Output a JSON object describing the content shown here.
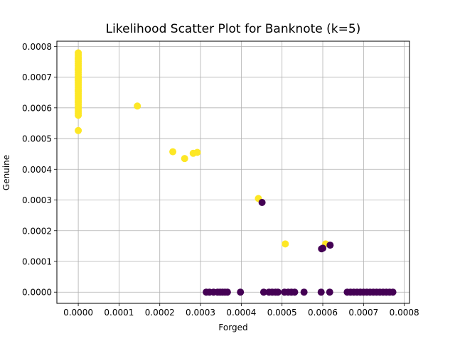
{
  "chart_data": {
    "type": "scatter",
    "title": "Likelihood Scatter Plot for Banknote (k=5)",
    "xlabel": "Forged",
    "ylabel": "Genuine",
    "xlim": [
      -5.25e-05,
      0.0008128
    ],
    "ylim": [
      -3.65e-05,
      0.000817
    ],
    "x_ticks": [
      "0.0000",
      "0.0001",
      "0.0002",
      "0.0003",
      "0.0004",
      "0.0005",
      "0.0006",
      "0.0007",
      "0.0008"
    ],
    "x_tick_values": [
      0,
      0.0001,
      0.0002,
      0.0003,
      0.0004,
      0.0005,
      0.0006,
      0.0007,
      0.0008
    ],
    "y_ticks": [
      "0.0000",
      "0.0001",
      "0.0002",
      "0.0003",
      "0.0004",
      "0.0005",
      "0.0006",
      "0.0007",
      "0.0008"
    ],
    "y_tick_values": [
      0,
      0.0001,
      0.0002,
      0.0003,
      0.0004,
      0.0005,
      0.0006,
      0.0007,
      0.0008
    ],
    "grid": true,
    "legend": "none",
    "colors": {
      "genuine_class": "#fde725",
      "forged_class": "#440154"
    },
    "series": [
      {
        "color": "#fde725",
        "x": [
          0,
          0,
          0,
          0,
          0,
          0,
          0,
          0,
          0,
          0,
          0,
          0,
          0,
          0,
          0,
          0,
          0,
          0,
          0,
          0,
          0,
          0,
          0,
          0,
          0,
          0,
          0,
          0,
          0,
          0,
          0,
          0,
          0,
          0,
          0,
          0,
          0.000145,
          0.000232,
          0.000261,
          0.000282,
          0.000292,
          0.000442,
          0.000508,
          0.000607
        ],
        "y": [
          0.000779,
          0.000772,
          0.000765,
          0.000758,
          0.000751,
          0.000744,
          0.000737,
          0.00073,
          0.000723,
          0.000716,
          0.000709,
          0.000702,
          0.000695,
          0.000688,
          0.000681,
          0.000674,
          0.000667,
          0.00066,
          0.000653,
          0.000646,
          0.000639,
          0.000632,
          0.000625,
          0.000618,
          0.000611,
          0.000604,
          0.000597,
          0.00059,
          0.000583,
          0.000576,
          0.00062,
          0.000655,
          0.00069,
          0.000725,
          0.00076,
          0.000526,
          0.000606,
          0.000457,
          0.000435,
          0.000452,
          0.000455,
          0.000305,
          0.000157,
          0.000157
        ]
      },
      {
        "color": "#440154",
        "x": [
          0.000451,
          0.000597,
          0.0006,
          0.000618,
          0.000314,
          0.000322,
          0.000332,
          0.000342,
          0.000348,
          0.000354,
          0.00036,
          0.000366,
          0.000398,
          0.000455,
          0.000468,
          0.000476,
          0.000484,
          0.00049,
          0.000506,
          0.000515,
          0.000523,
          0.000531,
          0.000554,
          0.000596,
          0.000617,
          0.00066,
          0.000668,
          0.000676,
          0.000684,
          0.000692,
          0.0007,
          0.000708,
          0.000716,
          0.000724,
          0.000732,
          0.00074,
          0.000748,
          0.000756,
          0.000764,
          0.000772
        ],
        "y": [
          0.000292,
          0.000141,
          0.000143,
          0.000153,
          0,
          0,
          0,
          0,
          0,
          0,
          0,
          0,
          0,
          0,
          0,
          0,
          0,
          0,
          0,
          0,
          0,
          0,
          0,
          0,
          0,
          0,
          0,
          0,
          0,
          0,
          0,
          0,
          0,
          0,
          0,
          0,
          0,
          0,
          0,
          0
        ]
      }
    ]
  }
}
